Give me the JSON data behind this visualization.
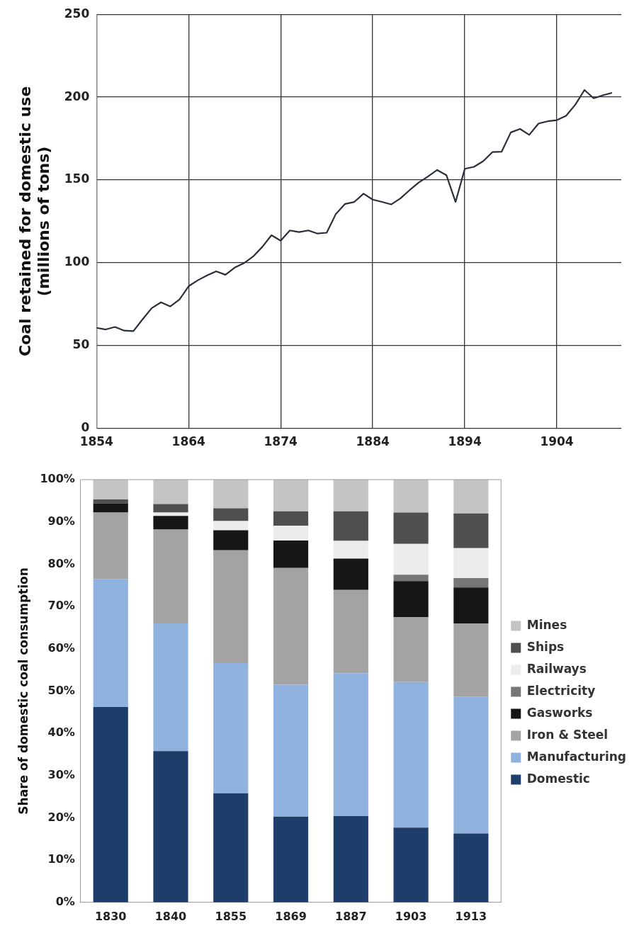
{
  "chart_data": [
    {
      "type": "line",
      "ylabel": "Coal retained for domestic use\n(millions of tons)",
      "x": [
        1854,
        1855,
        1856,
        1857,
        1858,
        1859,
        1860,
        1861,
        1862,
        1863,
        1864,
        1865,
        1866,
        1867,
        1868,
        1869,
        1870,
        1871,
        1872,
        1873,
        1874,
        1875,
        1876,
        1877,
        1878,
        1879,
        1880,
        1881,
        1882,
        1883,
        1884,
        1885,
        1886,
        1887,
        1888,
        1889,
        1890,
        1891,
        1892,
        1893,
        1894,
        1895,
        1896,
        1897,
        1898,
        1899,
        1900,
        1901,
        1902,
        1903,
        1904,
        1905,
        1906,
        1907,
        1908,
        1909,
        1910
      ],
      "values": [
        60.7,
        59.7,
        61.2,
        59.0,
        58.7,
        65.8,
        72.6,
        76.1,
        73.6,
        77.7,
        85.8,
        89.4,
        92.3,
        94.8,
        92.7,
        97.0,
        99.7,
        103.7,
        109.5,
        116.6,
        113.3,
        119.5,
        118.5,
        119.5,
        117.6,
        118.1,
        129.5,
        135.5,
        136.7,
        141.7,
        138.1,
        136.7,
        135.2,
        138.8,
        143.8,
        148.4,
        152.1,
        156.0,
        152.9,
        136.7,
        156.7,
        157.9,
        161.3,
        166.8,
        167.0,
        178.7,
        180.8,
        177.2,
        184.0,
        185.4,
        186.1,
        188.7,
        195.4,
        204.3,
        199.3,
        201.1,
        202.6
      ],
      "color": "#2b2f3a",
      "marker": "none",
      "line_style": "solid",
      "xlim": [
        1854,
        1911
      ],
      "xticks": [
        1854,
        1864,
        1874,
        1884,
        1894,
        1904
      ],
      "ylim": [
        0,
        250
      ],
      "yticks": [
        0,
        50,
        100,
        150,
        200,
        250
      ],
      "grid": true,
      "legend": false
    },
    {
      "type": "bar",
      "ylabel": "Share of domestic coal consumption",
      "categories": [
        "1830",
        "1840",
        "1855",
        "1869",
        "1887",
        "1903",
        "1913"
      ],
      "stacked": true,
      "series": [
        {
          "name": "Domestic",
          "color": "#1f3d6b",
          "values": [
            46.2,
            35.8,
            25.8,
            20.3,
            20.4,
            17.7,
            16.3
          ]
        },
        {
          "name": "Manufacturing",
          "color": "#8fb2de",
          "values": [
            30.3,
            30.2,
            30.8,
            31.2,
            33.8,
            34.4,
            32.3
          ]
        },
        {
          "name": "Iron & Steel",
          "color": "#a3a3a3",
          "values": [
            15.7,
            22.2,
            26.7,
            27.6,
            19.7,
            15.4,
            17.4
          ]
        },
        {
          "name": "Gasworks",
          "color": "#161616",
          "values": [
            2.2,
            3.2,
            4.7,
            6.5,
            7.4,
            8.5,
            8.5
          ]
        },
        {
          "name": "Electricity",
          "color": "#767676",
          "values": [
            0,
            0,
            0,
            0,
            0,
            1.5,
            2.2
          ]
        },
        {
          "name": "Railways",
          "color": "#ececec",
          "values": [
            0,
            0.8,
            2.2,
            3.5,
            4.2,
            7.3,
            7.1
          ]
        },
        {
          "name": "Ships",
          "color": "#4f4f4f",
          "values": [
            0.9,
            2.0,
            3.0,
            3.4,
            7.0,
            7.4,
            8.2
          ]
        },
        {
          "name": "Mines",
          "color": "#c4c4c4",
          "values": [
            4.7,
            5.8,
            6.8,
            7.5,
            7.5,
            7.8,
            8.0
          ]
        }
      ],
      "ylim": [
        0,
        100
      ],
      "yticks": [
        {
          "value": 0,
          "label": "0%"
        },
        {
          "value": 10,
          "label": "10%"
        },
        {
          "value": 20,
          "label": "20%"
        },
        {
          "value": 30,
          "label": "30%"
        },
        {
          "value": 40,
          "label": "40%"
        },
        {
          "value": 50,
          "label": "50%"
        },
        {
          "value": 60,
          "label": "60%"
        },
        {
          "value": 70,
          "label": "70%"
        },
        {
          "value": 80,
          "label": "80%"
        },
        {
          "value": 90,
          "label": "90%"
        },
        {
          "value": 100,
          "label": "100%"
        }
      ],
      "grid": false,
      "legend": "right"
    }
  ]
}
